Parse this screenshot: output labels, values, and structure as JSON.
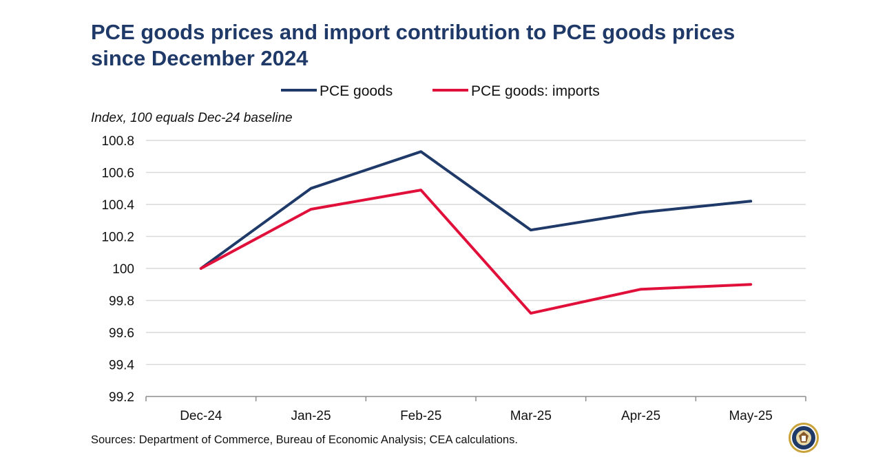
{
  "chart_data": {
    "type": "line",
    "title": "PCE goods prices and import contribution to PCE goods prices since December 2024",
    "ylabel": "Index, 100 equals Dec-24 baseline",
    "xlabel": "",
    "categories": [
      "Dec-24",
      "Jan-25",
      "Feb-25",
      "Mar-25",
      "Apr-25",
      "May-25"
    ],
    "ylim": [
      99.2,
      100.8
    ],
    "yticks": [
      99.2,
      99.4,
      99.6,
      99.8,
      100,
      100.2,
      100.4,
      100.6,
      100.8
    ],
    "ytick_labels": [
      "99.2",
      "99.4",
      "99.6",
      "99.8",
      "100",
      "100.2",
      "100.4",
      "100.6",
      "100.8"
    ],
    "grid": "horizontal",
    "legend_position": "top-center",
    "series": [
      {
        "name": "PCE goods",
        "color": "#1f3a68",
        "values": [
          100.0,
          100.5,
          100.73,
          100.24,
          100.35,
          100.42
        ]
      },
      {
        "name": "PCE goods: imports",
        "color": "#e0103a",
        "values": [
          100.0,
          100.37,
          100.49,
          99.72,
          99.87,
          99.9
        ]
      }
    ],
    "source": "Sources: Department of Commerce, Bureau of Economic Analysis; CEA calculations."
  },
  "seal_icon": "cea-seal-icon"
}
